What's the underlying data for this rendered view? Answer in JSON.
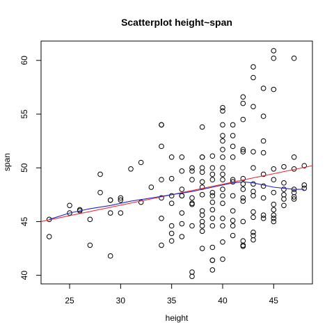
{
  "chart_data": {
    "type": "scatter",
    "title": "Scatterplot height~span",
    "xlabel": "height",
    "ylabel": "span",
    "xlim": [
      22.2,
      48.8
    ],
    "ylim": [
      39.2,
      61.8
    ],
    "xticks": [
      25,
      30,
      35,
      40,
      45
    ],
    "yticks": [
      40,
      45,
      50,
      55,
      60
    ],
    "grid": false,
    "colors": {
      "points": "#000000",
      "regression": "#e8303a",
      "smooth": "#2424c8"
    },
    "points": [
      [
        23,
        45.2
      ],
      [
        23,
        43.6
      ],
      [
        25,
        46.5
      ],
      [
        25,
        45.8
      ],
      [
        26,
        46.1
      ],
      [
        26,
        46.0
      ],
      [
        27,
        45.2
      ],
      [
        27,
        42.8
      ],
      [
        28,
        49.4
      ],
      [
        28,
        47.7
      ],
      [
        29,
        47.0
      ],
      [
        29,
        47.0
      ],
      [
        29,
        45.8
      ],
      [
        29,
        41.8
      ],
      [
        30,
        47.2
      ],
      [
        30,
        47.0
      ],
      [
        30,
        45.8
      ],
      [
        31,
        49.9
      ],
      [
        32,
        50.5
      ],
      [
        32,
        46.8
      ],
      [
        33,
        48.2
      ],
      [
        34,
        54.0
      ],
      [
        34,
        54.0
      ],
      [
        34,
        52.0
      ],
      [
        34,
        48.9
      ],
      [
        34,
        47.2
      ],
      [
        34,
        45.3
      ],
      [
        34,
        42.8
      ],
      [
        35,
        51.0
      ],
      [
        35,
        49.0
      ],
      [
        35,
        47.4
      ],
      [
        35,
        46.7
      ],
      [
        35,
        44.6
      ],
      [
        35,
        43.9
      ],
      [
        35,
        43.2
      ],
      [
        36,
        51.0
      ],
      [
        36,
        49.7
      ],
      [
        36,
        48.0
      ],
      [
        36,
        47.4
      ],
      [
        36,
        47.4
      ],
      [
        36,
        45.8
      ],
      [
        36,
        44.8
      ],
      [
        36,
        43.6
      ],
      [
        37,
        50.0
      ],
      [
        37,
        49.7
      ],
      [
        37,
        48.9
      ],
      [
        37,
        47.2
      ],
      [
        37,
        46.7
      ],
      [
        37,
        46.6
      ],
      [
        37,
        44.6
      ],
      [
        37,
        40.3
      ],
      [
        37,
        39.9
      ],
      [
        38,
        53.8
      ],
      [
        38,
        51.0
      ],
      [
        38,
        51.0
      ],
      [
        38,
        50.0
      ],
      [
        38,
        49.6
      ],
      [
        38,
        48.7
      ],
      [
        38,
        48.2
      ],
      [
        38,
        47.5
      ],
      [
        38,
        46.0
      ],
      [
        38,
        45.6
      ],
      [
        38,
        45.0
      ],
      [
        38,
        44.6
      ],
      [
        38,
        44.1
      ],
      [
        38,
        42.5
      ],
      [
        39,
        51.1
      ],
      [
        39,
        50.0
      ],
      [
        39,
        49.4
      ],
      [
        39,
        48.9
      ],
      [
        39,
        47.7
      ],
      [
        39,
        47.4
      ],
      [
        39,
        46.8
      ],
      [
        39,
        46.1
      ],
      [
        39,
        45.3
      ],
      [
        39,
        44.6
      ],
      [
        39,
        42.6
      ],
      [
        39,
        41.4
      ],
      [
        39,
        41.4
      ],
      [
        39,
        40.5
      ],
      [
        40,
        55.6
      ],
      [
        40,
        55.3
      ],
      [
        40,
        54.0
      ],
      [
        40,
        53.0
      ],
      [
        40,
        52.5
      ],
      [
        40,
        51.7
      ],
      [
        40,
        51.0
      ],
      [
        40,
        50.0
      ],
      [
        40,
        49.4
      ],
      [
        40,
        48.9
      ],
      [
        40,
        48.0
      ],
      [
        40,
        47.4
      ],
      [
        40,
        46.7
      ],
      [
        40,
        45.3
      ],
      [
        40,
        44.6
      ],
      [
        40,
        43.1
      ],
      [
        40,
        41.5
      ],
      [
        41,
        54.0
      ],
      [
        41,
        53.0
      ],
      [
        41,
        52.0
      ],
      [
        41,
        51.0
      ],
      [
        41,
        48.9
      ],
      [
        41,
        48.7
      ],
      [
        41,
        47.4
      ],
      [
        41,
        46.0
      ],
      [
        41,
        45.1
      ],
      [
        41,
        44.6
      ],
      [
        41,
        43.7
      ],
      [
        42,
        56.6
      ],
      [
        42,
        56.0
      ],
      [
        42,
        54.5
      ],
      [
        42,
        51.7
      ],
      [
        42,
        51.5
      ],
      [
        42,
        49.0
      ],
      [
        42,
        48.5
      ],
      [
        42,
        48.0
      ],
      [
        42,
        47.2
      ],
      [
        42,
        46.9
      ],
      [
        42,
        45.0
      ],
      [
        42,
        43.2
      ],
      [
        42,
        42.8
      ],
      [
        42,
        42.7
      ],
      [
        43,
        59.4
      ],
      [
        43,
        58.4
      ],
      [
        43,
        55.7
      ],
      [
        43,
        51.5
      ],
      [
        43,
        50.0
      ],
      [
        43,
        48.5
      ],
      [
        43,
        47.8
      ],
      [
        43,
        47.4
      ],
      [
        43,
        45.9
      ],
      [
        43,
        45.4
      ],
      [
        43,
        44.0
      ],
      [
        43,
        43.7
      ],
      [
        43,
        43.3
      ],
      [
        44,
        57.4
      ],
      [
        44,
        54.8
      ],
      [
        44,
        52.5
      ],
      [
        44,
        51.4
      ],
      [
        44,
        49.4
      ],
      [
        44,
        48.3
      ],
      [
        44,
        47.2
      ],
      [
        44,
        45.6
      ],
      [
        44,
        45.3
      ],
      [
        45,
        60.9
      ],
      [
        45,
        60.2
      ],
      [
        45,
        57.3
      ],
      [
        45,
        49.9
      ],
      [
        45,
        48.9
      ],
      [
        45,
        47.7
      ],
      [
        45,
        46.6
      ],
      [
        45,
        46.1
      ],
      [
        45,
        45.6
      ],
      [
        45,
        45.3
      ],
      [
        45,
        45.0
      ],
      [
        46,
        50.1
      ],
      [
        46,
        48.6
      ],
      [
        46,
        48.0
      ],
      [
        46,
        47.5
      ],
      [
        46,
        47.1
      ],
      [
        46,
        46.5
      ],
      [
        47,
        60.2
      ],
      [
        47,
        51.0
      ],
      [
        47,
        49.9
      ],
      [
        47,
        48.0
      ],
      [
        47,
        47.7
      ],
      [
        47,
        47.3
      ],
      [
        47,
        47.1
      ],
      [
        48,
        50.2
      ],
      [
        48,
        48.4
      ],
      [
        48,
        48.1
      ]
    ],
    "regression_line": {
      "x": [
        22.2,
        48.8
      ],
      "y": [
        45.0,
        50.2
      ]
    },
    "smooth_line": {
      "x": [
        23,
        25,
        27,
        29,
        31,
        33,
        35,
        37,
        39,
        41,
        42,
        43,
        44,
        45,
        46,
        47,
        48
      ],
      "y": [
        45.2,
        45.8,
        46.2,
        46.5,
        46.9,
        47.2,
        47.5,
        47.8,
        48.2,
        48.6,
        48.7,
        48.6,
        48.4,
        48.2,
        48.1,
        48.0,
        48.0
      ]
    }
  }
}
